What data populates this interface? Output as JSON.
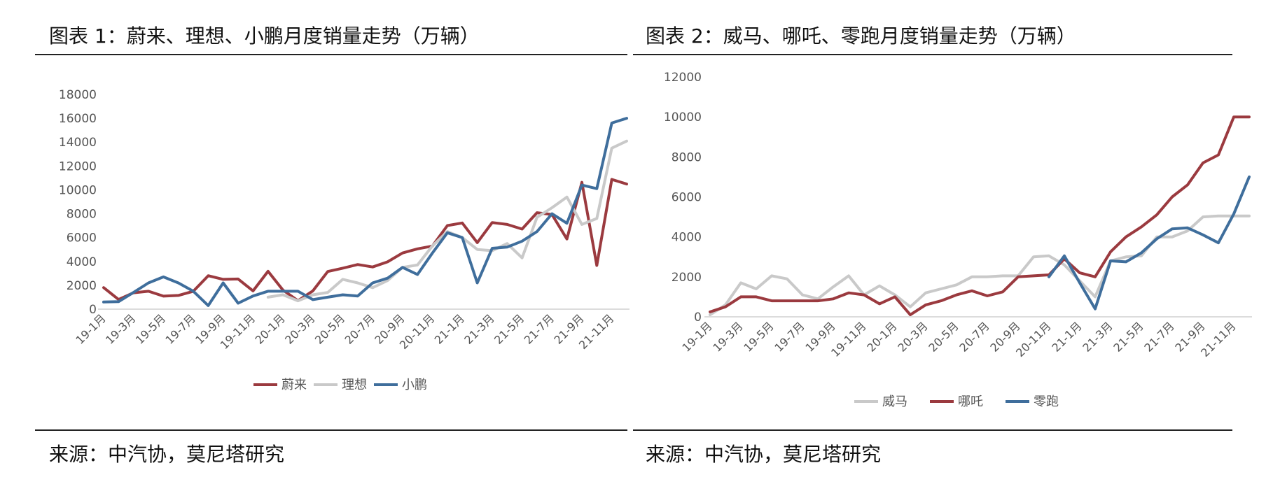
{
  "chart_data": [
    {
      "type": "line",
      "title": "图表 1：蔚来、理想、小鹏月度销量走势（万辆）",
      "source": "来源：中汽协，莫尼塔研究",
      "x_tick_labels": [
        "19-1月",
        "19-3月",
        "19-5月",
        "19-7月",
        "19-9月",
        "19-11月",
        "20-1月",
        "20-3月",
        "20-5月",
        "20-7月",
        "20-9月",
        "20-11月",
        "21-1月",
        "21-3月",
        "21-5月",
        "21-7月",
        "21-9月",
        "21-11月"
      ],
      "x": [
        "19-1月",
        "19-2月",
        "19-3月",
        "19-4月",
        "19-5月",
        "19-6月",
        "19-7月",
        "19-8月",
        "19-9月",
        "19-10月",
        "19-11月",
        "19-12月",
        "20-1月",
        "20-2月",
        "20-3月",
        "20-4月",
        "20-5月",
        "20-6月",
        "20-7月",
        "20-8月",
        "20-9月",
        "20-10月",
        "20-11月",
        "20-12月",
        "21-1月",
        "21-2月",
        "21-3月",
        "21-4月",
        "21-5月",
        "21-6月",
        "21-7月",
        "21-8月",
        "21-9月",
        "21-10月",
        "21-11月",
        "21-12月"
      ],
      "ylim": [
        0,
        18000
      ],
      "yticks": [
        0,
        2000,
        4000,
        6000,
        8000,
        10000,
        12000,
        14000,
        16000,
        18000
      ],
      "legend_position": "bottom",
      "grid": false,
      "series": [
        {
          "name": "蔚来",
          "color": "#9b3a3f",
          "values": [
            1805,
            811,
            1373,
            1500,
            1089,
            1150,
            1500,
            2800,
            2500,
            2526,
            1530,
            3170,
            1598,
            707,
            1533,
            3155,
            3436,
            3740,
            3533,
            3965,
            4708,
            5055,
            5291,
            7007,
            7225,
            5578,
            7257,
            7102,
            6711,
            8083,
            7931,
            5880,
            10628,
            3667,
            10878,
            10489
          ]
        },
        {
          "name": "理想",
          "color": "#c9c9c9",
          "values": [
            null,
            null,
            null,
            null,
            null,
            null,
            null,
            null,
            null,
            null,
            null,
            1000,
            1200,
            700,
            1200,
            1400,
            2500,
            2200,
            1800,
            2400,
            3500,
            3700,
            5300,
            6500,
            6000,
            5000,
            4900,
            5500,
            4300,
            7700,
            8500,
            9400,
            7100,
            7600,
            13500,
            14087
          ]
        },
        {
          "name": "小鹏",
          "color": "#3f6e9c",
          "values": [
            600,
            630,
            1400,
            2200,
            2700,
            2200,
            1500,
            300,
            2200,
            500,
            1100,
            1500,
            1500,
            1500,
            800,
            1000,
            1200,
            1100,
            2200,
            2600,
            3500,
            2900,
            4700,
            6400,
            6000,
            2200,
            5100,
            5200,
            5700,
            6500,
            8000,
            7200,
            10400,
            10100,
            15600,
            16000
          ]
        }
      ]
    },
    {
      "type": "line",
      "title": "图表 2：威马、哪吒、零跑月度销量走势（万辆）",
      "source": "来源：中汽协，莫尼塔研究",
      "x_tick_labels": [
        "19-1月",
        "19-3月",
        "19-5月",
        "19-7月",
        "19-9月",
        "19-11月",
        "20-1月",
        "20-3月",
        "20-5月",
        "20-7月",
        "20-9月",
        "20-11月",
        "21-1月",
        "21-3月",
        "21-5月",
        "21-7月",
        "21-9月",
        "21-11月"
      ],
      "x": [
        "19-1月",
        "19-2月",
        "19-3月",
        "19-4月",
        "19-5月",
        "19-6月",
        "19-7月",
        "19-8月",
        "19-9月",
        "19-10月",
        "19-11月",
        "19-12月",
        "20-1月",
        "20-2月",
        "20-3月",
        "20-4月",
        "20-5月",
        "20-6月",
        "20-7月",
        "20-8月",
        "20-9月",
        "20-10月",
        "20-11月",
        "20-12月",
        "21-1月",
        "21-2月",
        "21-3月",
        "21-4月",
        "21-5月",
        "21-6月",
        "21-7月",
        "21-8月",
        "21-9月",
        "21-10月",
        "21-11月",
        "21-12月"
      ],
      "ylim": [
        0,
        12000
      ],
      "yticks": [
        0,
        2000,
        4000,
        6000,
        8000,
        10000,
        12000
      ],
      "legend_position": "bottom",
      "grid": false,
      "series": [
        {
          "name": "威马",
          "color": "#c9c9c9",
          "values": [
            100,
            600,
            1700,
            1400,
            2050,
            1900,
            1100,
            900,
            1500,
            2050,
            1100,
            1550,
            1100,
            500,
            1200,
            1400,
            1600,
            2000,
            2000,
            2050,
            2050,
            3000,
            3050,
            2600,
            1800,
            1000,
            2800,
            3000,
            3050,
            4000,
            4000,
            4300,
            5000,
            5050,
            5050,
            5050
          ]
        },
        {
          "name": "哪吒",
          "color": "#9b3a3f",
          "values": [
            250,
            500,
            1000,
            1000,
            800,
            800,
            800,
            800,
            900,
            1200,
            1100,
            650,
            1000,
            100,
            600,
            800,
            1100,
            1300,
            1050,
            1250,
            2000,
            2050,
            2100,
            2900,
            2200,
            2000,
            3250,
            4000,
            4500,
            5100,
            6000,
            6600,
            7700,
            8100,
            10000,
            10000
          ]
        },
        {
          "name": "零跑",
          "color": "#3f6e9c",
          "values": [
            null,
            null,
            null,
            null,
            null,
            null,
            null,
            null,
            null,
            null,
            null,
            null,
            null,
            null,
            null,
            null,
            null,
            null,
            null,
            null,
            null,
            null,
            2000,
            3050,
            1700,
            400,
            2800,
            2750,
            3200,
            3900,
            4400,
            4450,
            4100,
            3700,
            5150,
            7000
          ]
        }
      ]
    }
  ]
}
